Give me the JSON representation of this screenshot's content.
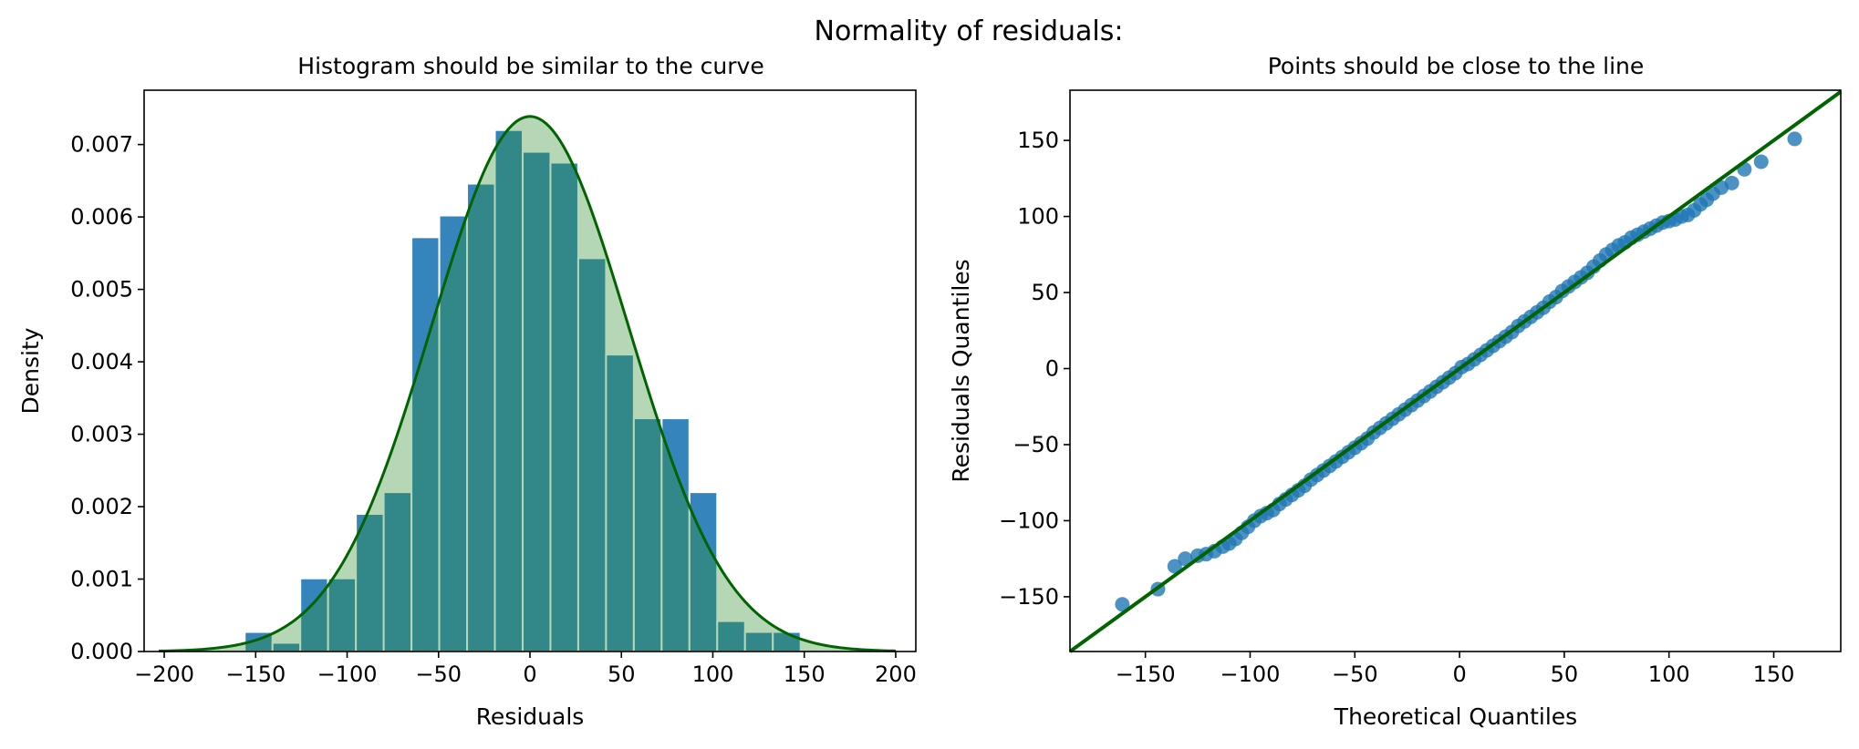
{
  "figure": {
    "suptitle": "Normality of residuals:"
  },
  "colors": {
    "bar": "#1f77b4",
    "curve": "#006400",
    "curve_fill": "#2e8b2e",
    "qq_line": "#006400",
    "points": "#1f77b4"
  },
  "chart_data": [
    {
      "type": "bar",
      "title": "Histogram should be similar to the curve",
      "xlabel": "Residuals",
      "ylabel": "Density",
      "xlim": [
        -211,
        211
      ],
      "ylim": [
        0,
        0.00775
      ],
      "xticks": [
        -200,
        -150,
        -100,
        -50,
        0,
        50,
        100,
        150,
        200
      ],
      "yticks": [
        0.0,
        0.001,
        0.002,
        0.003,
        0.004,
        0.005,
        0.006,
        0.007
      ],
      "ytick_labels": [
        "0.000",
        "0.001",
        "0.002",
        "0.003",
        "0.004",
        "0.005",
        "0.006",
        "0.007"
      ],
      "xtick_labels": [
        "−200",
        "−150",
        "−100",
        "−50",
        "0",
        "50",
        "100",
        "150",
        "200"
      ],
      "bins": {
        "start": -156,
        "width": 15.2,
        "values": [
          0.00027,
          0.00012,
          0.00101,
          0.00101,
          0.0019,
          0.0022,
          0.00572,
          0.00602,
          0.00646,
          0.0072,
          0.0069,
          0.00675,
          0.00543,
          0.0041,
          0.00322,
          0.00322,
          0.0022,
          0.00042,
          0.00027,
          0.00027
        ]
      },
      "curve": {
        "type": "normal-pdf",
        "mean": 0,
        "sd": 54,
        "xmin": -203,
        "xmax": 200
      },
      "grid": false
    },
    {
      "type": "scatter",
      "title": "Points should be close to the line",
      "xlabel": "Theoretical Quantiles",
      "ylabel": "Residuals Quantiles",
      "xlim": [
        -186,
        182
      ],
      "ylim": [
        -186,
        183
      ],
      "xticks": [
        -150,
        -100,
        -50,
        0,
        50,
        100,
        150
      ],
      "yticks": [
        -150,
        -100,
        -50,
        0,
        50,
        100,
        150
      ],
      "xtick_labels": [
        "−150",
        "−100",
        "−50",
        "0",
        "50",
        "100",
        "150"
      ],
      "ytick_labels": [
        "−150",
        "−100",
        "−50",
        "0",
        "50",
        "100",
        "150"
      ],
      "reference_line": {
        "slope": 1,
        "intercept": 0
      },
      "points": [
        [
          -161,
          -155
        ],
        [
          -144,
          -145
        ],
        [
          -136,
          -130
        ],
        [
          -131,
          -125
        ],
        [
          -125,
          -123
        ],
        [
          -121,
          -122
        ],
        [
          -117,
          -120
        ],
        [
          -113,
          -117
        ],
        [
          -110,
          -115
        ],
        [
          -107,
          -112
        ],
        [
          -104,
          -108
        ],
        [
          -101,
          -104
        ],
        [
          -98,
          -100
        ],
        [
          -95,
          -97
        ],
        [
          -92,
          -95
        ],
        [
          -89,
          -93
        ],
        [
          -86,
          -89
        ],
        [
          -83,
          -86
        ],
        [
          -80,
          -83
        ],
        [
          -77,
          -80
        ],
        [
          -74,
          -77
        ],
        [
          -71,
          -73
        ],
        [
          -68,
          -70
        ],
        [
          -65,
          -67
        ],
        [
          -62,
          -64
        ],
        [
          -59,
          -61
        ],
        [
          -56,
          -58
        ],
        [
          -53,
          -55
        ],
        [
          -50,
          -52
        ],
        [
          -47,
          -49
        ],
        [
          -44,
          -46
        ],
        [
          -41,
          -42
        ],
        [
          -38,
          -39
        ],
        [
          -35,
          -36
        ],
        [
          -32,
          -33
        ],
        [
          -29,
          -30
        ],
        [
          -26,
          -27
        ],
        [
          -23,
          -24
        ],
        [
          -20,
          -21
        ],
        [
          -17,
          -18
        ],
        [
          -14,
          -15
        ],
        [
          -11,
          -12
        ],
        [
          -8,
          -9
        ],
        [
          -5,
          -6
        ],
        [
          -2,
          -3
        ],
        [
          1,
          1
        ],
        [
          4,
          3
        ],
        [
          7,
          6
        ],
        [
          10,
          9
        ],
        [
          13,
          12
        ],
        [
          16,
          15
        ],
        [
          19,
          18
        ],
        [
          22,
          21
        ],
        [
          25,
          24
        ],
        [
          28,
          28
        ],
        [
          31,
          31
        ],
        [
          34,
          34
        ],
        [
          37,
          37
        ],
        [
          40,
          40
        ],
        [
          43,
          44
        ],
        [
          46,
          47
        ],
        [
          49,
          51
        ],
        [
          52,
          54
        ],
        [
          55,
          57
        ],
        [
          58,
          60
        ],
        [
          61,
          63
        ],
        [
          64,
          67
        ],
        [
          67,
          71
        ],
        [
          70,
          75
        ],
        [
          73,
          78
        ],
        [
          76,
          81
        ],
        [
          79,
          83
        ],
        [
          82,
          86
        ],
        [
          85,
          88
        ],
        [
          88,
          90
        ],
        [
          91,
          92
        ],
        [
          94,
          94
        ],
        [
          97,
          96
        ],
        [
          100,
          97
        ],
        [
          103,
          98
        ],
        [
          106,
          100
        ],
        [
          109,
          101
        ],
        [
          112,
          104
        ],
        [
          115,
          108
        ],
        [
          118,
          111
        ],
        [
          121,
          115
        ],
        [
          125,
          119
        ],
        [
          130,
          122
        ],
        [
          136,
          131
        ],
        [
          144,
          136
        ],
        [
          160,
          151
        ]
      ],
      "grid": false
    }
  ]
}
